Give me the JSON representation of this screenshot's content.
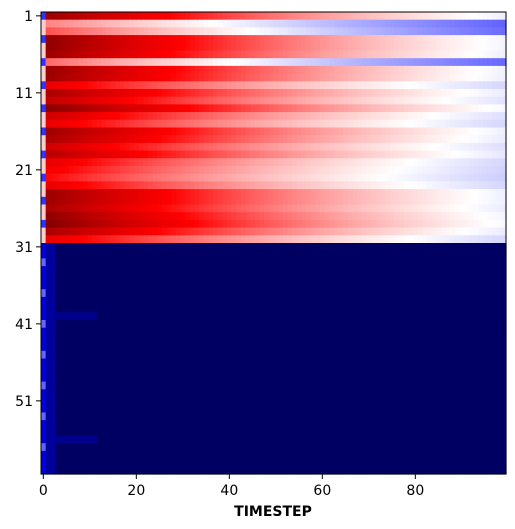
{
  "chart_data": {
    "type": "heatmap",
    "title": "",
    "xlabel": "TIMESTEP",
    "ylabel": "",
    "x_range": [
      0,
      99
    ],
    "y_range": [
      1,
      60
    ],
    "x_ticks": [
      0,
      20,
      40,
      60,
      80
    ],
    "y_ticks": [
      1,
      11,
      21,
      31,
      41,
      51
    ],
    "x_tick_labels": [
      "0",
      "20",
      "40",
      "60",
      "80"
    ],
    "y_tick_labels": [
      "1",
      "11",
      "21",
      "31",
      "41",
      "51"
    ],
    "colormap": "seismic",
    "color_range": [
      -1,
      1
    ],
    "colors": {
      "negative_low": "#00005c",
      "negative_mid": "#0000ff",
      "zero": "#ffffff",
      "positive_mid": "#ff0000"
    },
    "grid": false,
    "legend": "none",
    "rows": {
      "positive_rows": [
        1,
        2,
        3,
        4,
        5,
        6,
        7,
        8,
        9,
        10,
        11,
        12,
        13,
        14,
        15,
        16,
        17,
        18,
        19,
        20,
        21,
        22,
        23,
        24,
        25,
        26,
        27,
        28,
        29,
        30
      ],
      "positive_start_intensity": [
        0.9,
        0.25,
        0.35,
        0.95,
        0.95,
        0.9,
        0.3,
        0.92,
        0.9,
        0.6,
        0.85,
        0.75,
        0.98,
        0.7,
        0.6,
        0.9,
        0.85,
        0.7,
        0.8,
        0.6,
        0.55,
        0.5,
        0.6,
        0.9,
        0.9,
        0.85,
        0.95,
        1.0,
        0.85,
        0.6
      ],
      "negative_rows": [
        31,
        32,
        33,
        34,
        35,
        36,
        37,
        38,
        39,
        40,
        41,
        42,
        43,
        44,
        45,
        46,
        47,
        48,
        49,
        50,
        51,
        52,
        53,
        54,
        55,
        56,
        57,
        58,
        59,
        60
      ],
      "negative_value": -0.98
    }
  }
}
